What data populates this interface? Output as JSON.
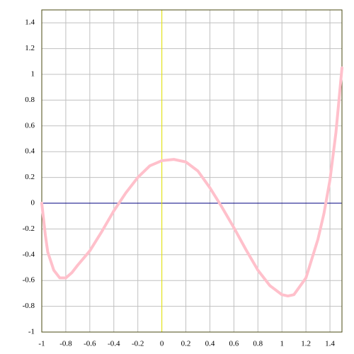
{
  "chart_data": {
    "type": "line",
    "x": [
      -1,
      -0.97,
      -0.95,
      -0.9,
      -0.85,
      -0.8,
      -0.75,
      -0.7,
      -0.6,
      -0.5,
      -0.4,
      -0.3,
      -0.2,
      -0.1,
      0,
      0.1,
      0.2,
      0.3,
      0.4,
      0.5,
      0.6,
      0.7,
      0.8,
      0.9,
      1.0,
      1.05,
      1.1,
      1.2,
      1.3,
      1.35,
      1.4,
      1.45,
      1.5
    ],
    "series": [
      {
        "color": "#ffc0cb",
        "values": [
          0,
          -0.25,
          -0.38,
          -0.52,
          -0.58,
          -0.58,
          -0.54,
          -0.48,
          -0.37,
          -0.22,
          -0.06,
          0.08,
          0.2,
          0.29,
          0.33,
          0.34,
          0.32,
          0.25,
          0.12,
          -0.03,
          -0.19,
          -0.36,
          -0.52,
          -0.64,
          -0.71,
          -0.72,
          -0.71,
          -0.58,
          -0.28,
          -0.08,
          0.18,
          0.55,
          1.05
        ]
      }
    ],
    "xlim": [
      -1,
      1.5
    ],
    "ylim": [
      -1,
      1.5
    ],
    "xticks": [
      -1,
      -0.8,
      -0.6,
      -0.4,
      -0.2,
      0,
      0.2,
      0.4,
      0.6,
      0.8,
      1,
      1.2,
      1.4
    ],
    "yticks": [
      -1,
      -0.8,
      -0.6,
      -0.4,
      -0.2,
      0,
      0.2,
      0.4,
      0.6,
      0.8,
      1,
      1.2,
      1.4
    ],
    "grid": true
  }
}
